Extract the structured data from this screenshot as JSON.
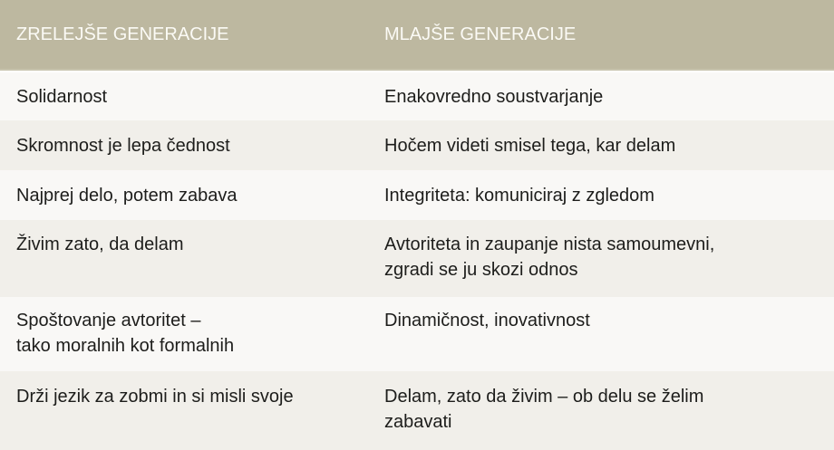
{
  "header": {
    "col1": "ZRELEJŠE GENERACIJE",
    "col2": "MLAJŠE GENERACIJE"
  },
  "rows": [
    {
      "older": [
        "Solidarnost"
      ],
      "younger": [
        "Enakovredno soustvarjanje"
      ]
    },
    {
      "older": [
        "Skromnost je lepa čednost"
      ],
      "younger": [
        "Hočem videti smisel tega, kar delam"
      ]
    },
    {
      "older": [
        "Najprej delo, potem zabava"
      ],
      "younger": [
        "Integriteta: komuniciraj z zgledom"
      ]
    },
    {
      "older": [
        "Živim zato, da delam"
      ],
      "younger": [
        "Avtoriteta in zaupanje nista samoumevni,",
        "zgradi se ju skozi odnos"
      ]
    },
    {
      "older": [
        "Spoštovanje avtoritet –",
        "tako moralnih kot formalnih"
      ],
      "younger": [
        "Dinamičnost, inovativnost"
      ]
    },
    {
      "older": [
        "Drži jezik za zobmi in si misli svoje"
      ],
      "younger": [
        "Delam, zato da živim – ob delu se želim",
        "zabavati"
      ]
    }
  ],
  "colors": {
    "header_bg": "#bdb8a0",
    "row_light": "#f9f8f6",
    "row_dark": "#f1efea"
  }
}
